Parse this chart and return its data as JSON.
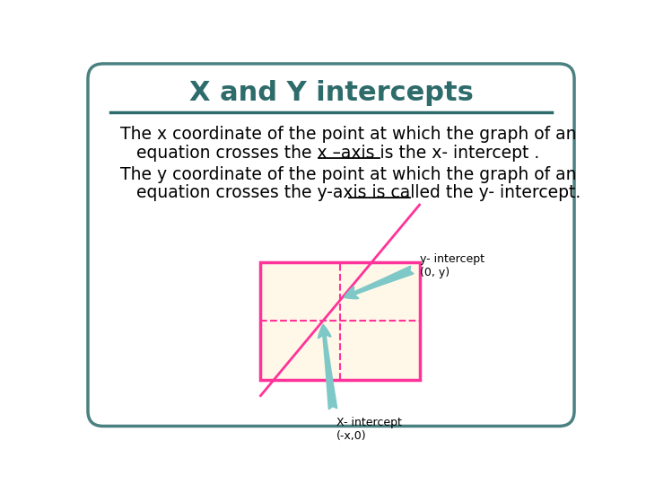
{
  "title": "X and Y intercepts",
  "title_color": "#2e6b6b",
  "title_fontsize": 22,
  "bg_color": "#ffffff",
  "slide_bg": "#ffffff",
  "border_color": "#4a8080",
  "sep_line_color": "#2e6b6b",
  "text_color": "#000000",
  "body_fontsize": 13.5,
  "line1": "The x coordinate of the point at which the graph of an",
  "line2a": "   equation crosses the x –axis is the ",
  "line2b": "x- intercept",
  "line2c": " .",
  "line3": "The y coordinate of the point at which the graph of an",
  "line4a": "   equation crosses the y-axis is called the ",
  "line4b": "y- intercept",
  "line4c": ".",
  "graph_bg": "#fff8e8",
  "graph_border": "#ff3399",
  "graph_line": "#ff3399",
  "arrow_color": "#7ec8c8",
  "y_intercept_label": "y- intercept\n(0, y)",
  "x_intercept_label": "X- intercept\n(-x,0)"
}
